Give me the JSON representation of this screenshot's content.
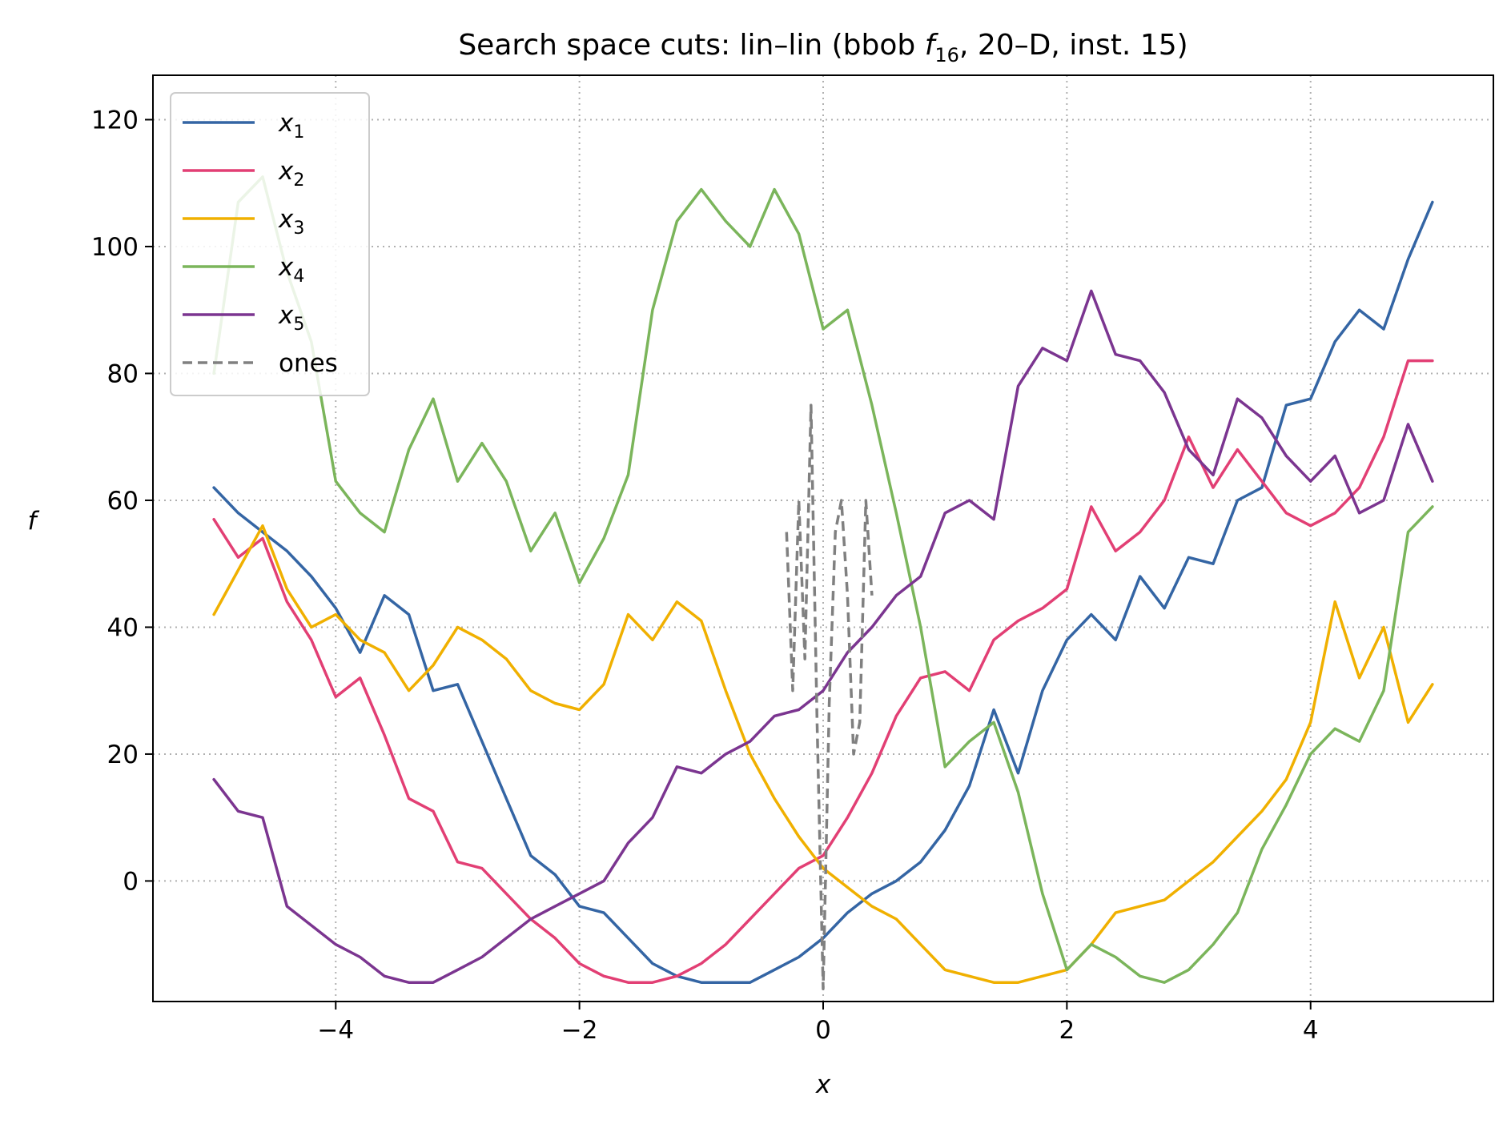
{
  "chart_data": {
    "type": "line",
    "title": "Search space cuts: lin–lin (bbob f₁₆, 20–D, inst. 15)",
    "title_parts": {
      "before": "Search space cuts: lin–lin (bbob ",
      "func_letter": "f",
      "func_sub": "16",
      "after": ", 20–D, inst. 15)"
    },
    "xlabel": "x",
    "ylabel": "f",
    "xlim": [
      -5.5,
      5.5
    ],
    "ylim": [
      -19,
      127
    ],
    "x_ticks": [
      {
        "value": -4,
        "label": "−4"
      },
      {
        "value": -2,
        "label": "−2"
      },
      {
        "value": 0,
        "label": "0"
      },
      {
        "value": 2,
        "label": "2"
      },
      {
        "value": 4,
        "label": "4"
      }
    ],
    "y_ticks": [
      {
        "value": 0,
        "label": "0"
      },
      {
        "value": 20,
        "label": "20"
      },
      {
        "value": 40,
        "label": "40"
      },
      {
        "value": 60,
        "label": "60"
      },
      {
        "value": 80,
        "label": "80"
      },
      {
        "value": 100,
        "label": "100"
      },
      {
        "value": 120,
        "label": "120"
      }
    ],
    "grid": true,
    "legend_position": "top-left",
    "series": [
      {
        "name": "x1",
        "sym": "x",
        "sub": "1",
        "color": "#3465a4",
        "dash": false,
        "x": [
          -5,
          -4.8,
          -4.6,
          -4.4,
          -4.2,
          -4.0,
          -3.8,
          -3.6,
          -3.4,
          -3.2,
          -3.0,
          -2.8,
          -2.6,
          -2.4,
          -2.2,
          -2.0,
          -1.8,
          -1.6,
          -1.4,
          -1.2,
          -1.0,
          -0.8,
          -0.6,
          -0.4,
          -0.2,
          0.0,
          0.2,
          0.4,
          0.6,
          0.8,
          1.0,
          1.2,
          1.4,
          1.6,
          1.8,
          2.0,
          2.2,
          2.4,
          2.6,
          2.8,
          3.0,
          3.2,
          3.4,
          3.6,
          3.8,
          4.0,
          4.2,
          4.4,
          4.6,
          4.8,
          5.0
        ],
        "y": [
          62,
          58,
          55,
          52,
          48,
          43,
          36,
          45,
          42,
          30,
          31,
          22,
          13,
          4,
          1,
          -4,
          -5,
          -9,
          -13,
          -15,
          -16,
          -16,
          -16,
          -14,
          -12,
          -9,
          -5,
          -2,
          0,
          3,
          8,
          15,
          27,
          17,
          30,
          38,
          42,
          38,
          48,
          43,
          51,
          50,
          60,
          62,
          75,
          76,
          85,
          90,
          87,
          98,
          107
        ]
      },
      {
        "name": "x2",
        "sym": "x",
        "sub": "2",
        "color": "#e23f74",
        "dash": false,
        "x": [
          -5,
          -4.8,
          -4.6,
          -4.4,
          -4.2,
          -4.0,
          -3.8,
          -3.6,
          -3.4,
          -3.2,
          -3.0,
          -2.8,
          -2.6,
          -2.4,
          -2.2,
          -2.0,
          -1.8,
          -1.6,
          -1.4,
          -1.2,
          -1.0,
          -0.8,
          -0.6,
          -0.4,
          -0.2,
          0.0,
          0.2,
          0.4,
          0.6,
          0.8,
          1.0,
          1.2,
          1.4,
          1.6,
          1.8,
          2.0,
          2.2,
          2.4,
          2.6,
          2.8,
          3.0,
          3.2,
          3.4,
          3.6,
          3.8,
          4.0,
          4.2,
          4.4,
          4.6,
          4.8,
          5.0
        ],
        "y": [
          57,
          51,
          54,
          44,
          38,
          29,
          32,
          23,
          13,
          11,
          3,
          2,
          -2,
          -6,
          -9,
          -13,
          -15,
          -16,
          -16,
          -15,
          -13,
          -10,
          -6,
          -2,
          2,
          4,
          10,
          17,
          26,
          32,
          33,
          30,
          38,
          41,
          43,
          46,
          59,
          52,
          55,
          60,
          70,
          62,
          68,
          63,
          58,
          56,
          58,
          62,
          70,
          82,
          82
        ]
      },
      {
        "name": "x3",
        "sym": "x",
        "sub": "3",
        "color": "#f0b000",
        "dash": false,
        "x": [
          -5,
          -4.8,
          -4.6,
          -4.4,
          -4.2,
          -4.0,
          -3.8,
          -3.6,
          -3.4,
          -3.2,
          -3.0,
          -2.8,
          -2.6,
          -2.4,
          -2.2,
          -2.0,
          -1.8,
          -1.6,
          -1.4,
          -1.2,
          -1.0,
          -0.8,
          -0.6,
          -0.4,
          -0.2,
          0.0,
          0.2,
          0.4,
          0.6,
          0.8,
          1.0,
          1.2,
          1.4,
          1.6,
          1.8,
          2.0,
          2.2,
          2.4,
          2.6,
          2.8,
          3.0,
          3.2,
          3.4,
          3.6,
          3.8,
          4.0,
          4.2,
          4.4,
          4.6,
          4.8,
          5.0
        ],
        "y": [
          42,
          49,
          56,
          46,
          40,
          42,
          38,
          36,
          30,
          34,
          40,
          38,
          35,
          30,
          28,
          27,
          31,
          42,
          38,
          44,
          41,
          30,
          20,
          13,
          7,
          2,
          -1,
          -4,
          -6,
          -10,
          -14,
          -15,
          -16,
          -16,
          -15,
          -14,
          -10,
          -5,
          -4,
          -3,
          0,
          3,
          7,
          11,
          16,
          25,
          44,
          32,
          40,
          25,
          31
        ]
      },
      {
        "name": "x4",
        "sym": "x",
        "sub": "4",
        "color": "#7bb55b",
        "dash": false,
        "x": [
          -5,
          -4.8,
          -4.6,
          -4.4,
          -4.2,
          -4.0,
          -3.8,
          -3.6,
          -3.4,
          -3.2,
          -3.0,
          -2.8,
          -2.6,
          -2.4,
          -2.2,
          -2.0,
          -1.8,
          -1.6,
          -1.4,
          -1.2,
          -1.0,
          -0.8,
          -0.6,
          -0.4,
          -0.2,
          0.0,
          0.2,
          0.4,
          0.6,
          0.8,
          1.0,
          1.2,
          1.4,
          1.6,
          1.8,
          2.0,
          2.2,
          2.4,
          2.6,
          2.8,
          3.0,
          3.2,
          3.4,
          3.6,
          3.8,
          4.0,
          4.2,
          4.4,
          4.6,
          4.8,
          5.0
        ],
        "y": [
          80,
          107,
          111,
          96,
          85,
          63,
          58,
          55,
          68,
          76,
          63,
          69,
          63,
          52,
          58,
          47,
          54,
          64,
          90,
          104,
          109,
          104,
          100,
          109,
          102,
          87,
          90,
          75,
          58,
          40,
          18,
          22,
          25,
          14,
          -2,
          -14,
          -10,
          -12,
          -15,
          -16,
          -14,
          -10,
          -5,
          5,
          12,
          20,
          24,
          22,
          30,
          55,
          59
        ]
      },
      {
        "name": "x5",
        "sym": "x",
        "sub": "5",
        "color": "#7b3590",
        "dash": false,
        "x": [
          -5,
          -4.8,
          -4.6,
          -4.4,
          -4.2,
          -4.0,
          -3.8,
          -3.6,
          -3.4,
          -3.2,
          -3.0,
          -2.8,
          -2.6,
          -2.4,
          -2.2,
          -2.0,
          -1.8,
          -1.6,
          -1.4,
          -1.2,
          -1.0,
          -0.8,
          -0.6,
          -0.4,
          -0.2,
          0.0,
          0.2,
          0.4,
          0.6,
          0.8,
          1.0,
          1.2,
          1.4,
          1.6,
          1.8,
          2.0,
          2.2,
          2.4,
          2.6,
          2.8,
          3.0,
          3.2,
          3.4,
          3.6,
          3.8,
          4.0,
          4.2,
          4.4,
          4.6,
          4.8,
          5.0
        ],
        "y": [
          16,
          11,
          10,
          -4,
          -7,
          -10,
          -12,
          -15,
          -16,
          -16,
          -14,
          -12,
          -9,
          -6,
          -4,
          -2,
          0,
          6,
          10,
          18,
          17,
          20,
          22,
          26,
          27,
          30,
          36,
          40,
          45,
          48,
          58,
          60,
          57,
          78,
          84,
          82,
          93,
          83,
          82,
          77,
          68,
          64,
          76,
          73,
          67,
          63,
          67,
          58,
          60,
          72,
          63
        ]
      },
      {
        "name": "ones",
        "label": "ones",
        "color": "#808080",
        "dash": true,
        "x": [
          -0.3,
          -0.25,
          -0.2,
          -0.15,
          -0.1,
          -0.05,
          0.0,
          0.05,
          0.1,
          0.15,
          0.2,
          0.25,
          0.3,
          0.35,
          0.4
        ],
        "y": [
          55,
          30,
          60,
          35,
          75,
          25,
          -17,
          28,
          55,
          60,
          45,
          20,
          25,
          60,
          45
        ]
      }
    ]
  }
}
